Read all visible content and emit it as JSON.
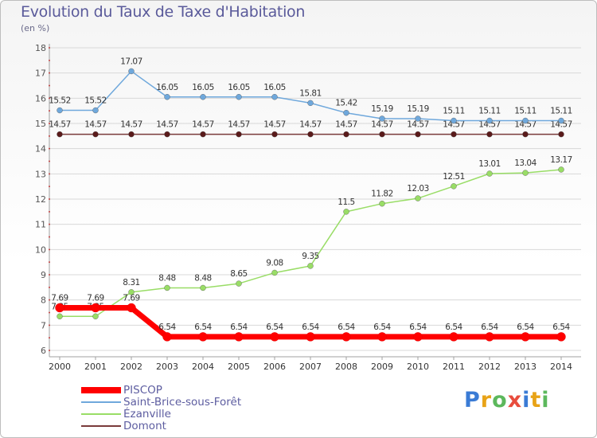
{
  "title": "Evolution du Taux de Taxe d'Habitation",
  "subtitle": "(en %)",
  "logo": {
    "text": "Proxiti",
    "letter_colors": [
      "#3a7bd5",
      "#e8a317",
      "#5cb85c",
      "#e84c3d",
      "#3a7bd5",
      "#e8a317",
      "#5cb85c"
    ]
  },
  "colors": {
    "grid": "#d8d8d8",
    "axis": "#a0a0a0",
    "label": "#333333",
    "tick_label": "#555555"
  },
  "chart_data": {
    "type": "line",
    "x": [
      "2000",
      "2001",
      "2002",
      "2003",
      "2004",
      "2005",
      "2006",
      "2007",
      "2008",
      "2009",
      "2010",
      "2011",
      "2012",
      "2013",
      "2014"
    ],
    "ylim": [
      6,
      18
    ],
    "yticks": [
      6,
      7,
      8,
      9,
      10,
      11,
      12,
      13,
      14,
      15,
      16,
      17,
      18
    ],
    "grid": "horizontal",
    "legend_position": "bottom-left",
    "series": [
      {
        "name": "PISCOP",
        "color": "#ff0000",
        "line_width": 7,
        "values": [
          7.69,
          7.69,
          7.69,
          6.54,
          6.54,
          6.54,
          6.54,
          6.54,
          6.54,
          6.54,
          6.54,
          6.54,
          6.54,
          6.54,
          6.54
        ],
        "labels": [
          "7.69",
          "7.69",
          "7.69",
          "6.54",
          "6.54",
          "6.54",
          "6.54",
          "6.54",
          "6.54",
          "6.54",
          "6.54",
          "6.54",
          "6.54",
          "6.54",
          "6.54"
        ]
      },
      {
        "name": "Saint-Brice-sous-Forêt",
        "color": "#6fa8dc",
        "line_width": 1.5,
        "values": [
          15.52,
          15.52,
          17.07,
          16.05,
          16.05,
          16.05,
          16.05,
          15.81,
          15.42,
          15.19,
          15.19,
          15.11,
          15.11,
          15.11,
          15.11
        ],
        "labels": [
          "15.52",
          "15.52",
          "17.07",
          "16.05",
          "16.05",
          "16.05",
          "16.05",
          "15.81",
          "15.42",
          "15.19",
          "15.19",
          "15.11",
          "15.11",
          "15.11",
          "15.11"
        ]
      },
      {
        "name": "Ézanville",
        "color": "#99dd66",
        "line_width": 1.5,
        "values": [
          7.35,
          7.35,
          8.31,
          8.48,
          8.48,
          8.65,
          9.08,
          9.35,
          11.5,
          11.82,
          12.03,
          12.51,
          13.01,
          13.04,
          13.17
        ],
        "labels": [
          "7.35",
          "7.35",
          "8.31",
          "8.48",
          "8.48",
          "8.65",
          "9.08",
          "9.35",
          "11.5",
          "11.82",
          "12.03",
          "12.51",
          "13.01",
          "13.04",
          "13.17"
        ]
      },
      {
        "name": "Domont",
        "color": "#7a3b3b",
        "line_width": 1.5,
        "values": [
          14.57,
          14.57,
          14.57,
          14.57,
          14.57,
          14.57,
          14.57,
          14.57,
          14.57,
          14.57,
          14.57,
          14.57,
          14.57,
          14.57,
          14.57
        ],
        "labels": [
          "14.57",
          "14.57",
          "14.57",
          "14.57",
          "14.57",
          "14.57",
          "14.57",
          "14.57",
          "14.57",
          "14.57",
          "14.57",
          "14.57",
          "14.57",
          "14.57",
          "14.57"
        ]
      }
    ]
  }
}
